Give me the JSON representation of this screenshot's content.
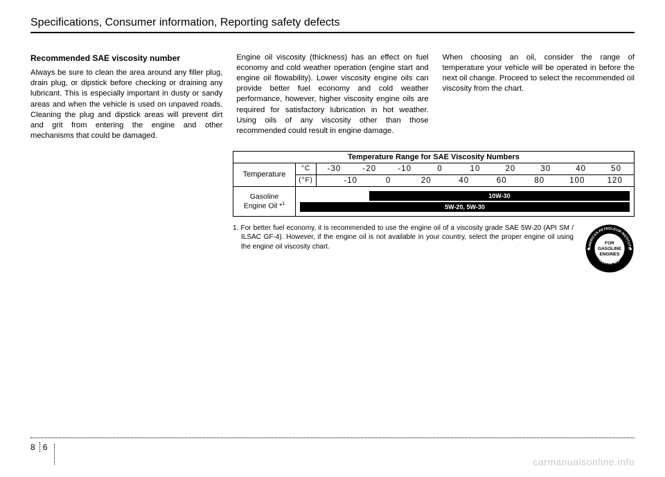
{
  "chapter_title": "Specifications, Consumer information, Reporting safety defects",
  "col1": {
    "heading": "Recommended SAE viscosity number",
    "body": "Always be sure to clean the area around any filler plug, drain plug, or dipstick before checking or draining any lubricant. This is especially important in dusty or sandy areas and when the vehicle is used on unpaved roads. Cleaning the plug and dipstick areas will prevent dirt and grit from entering the engine and other mechanisms that could be damaged."
  },
  "col2": {
    "body": "Engine oil viscosity (thickness) has an effect on fuel economy and cold weather operation (engine start and engine oil flowability). Lower viscosity engine oils can provide better fuel economy and cold weather performance, however, higher viscosity engine oils are required for satisfactory lubrication in hot weather. Using oils of any viscosity other than those recommended could result in engine damage."
  },
  "col3": {
    "body": "When choosing an oil, consider the range of temperature your vehicle will be operated in before the next oil change. Proceed to select the recommended oil viscosity from the chart."
  },
  "chart": {
    "header": "Temperature Range for SAE Viscosity Numbers",
    "temp_label": "Temperature",
    "unit_c": "°C",
    "unit_f": "(°F)",
    "c_scale": [
      "-30",
      "-20",
      "-10",
      "0",
      "10",
      "20",
      "30",
      "40",
      "50"
    ],
    "f_scale": [
      "-10",
      "0",
      "20",
      "40",
      "60",
      "80",
      "100",
      "120"
    ],
    "oil_label_1": "Gasoline",
    "oil_label_2": "Engine Oil *",
    "oil_label_sup": "1",
    "bars": [
      {
        "label": "10W-30",
        "left_pct": 21,
        "width_pct": 79
      },
      {
        "label": "5W-20, 5W-30",
        "left_pct": 0,
        "width_pct": 100
      }
    ],
    "colors": {
      "bar_bg": "#000000",
      "bar_text": "#ffffff",
      "border": "#000000"
    }
  },
  "footnote": "1. For better fuel economy, it is recommended to use the engine oil of a viscosity grade SAE 5W-20 (API SM / ILSAC GF-4). However, if the engine oil is not available in your country, select the proper engine oil using the engine oil viscosity chart.",
  "seal": {
    "outer_top": "AMERICAN PETROLEUM INSTITUTE",
    "outer_bottom": "CERTIFIED",
    "inner_1": "FOR",
    "inner_2": "GASOLINE",
    "inner_3": "ENGINES"
  },
  "page": {
    "section": "8",
    "number": "6"
  },
  "watermark": "carmanualsonline.info"
}
